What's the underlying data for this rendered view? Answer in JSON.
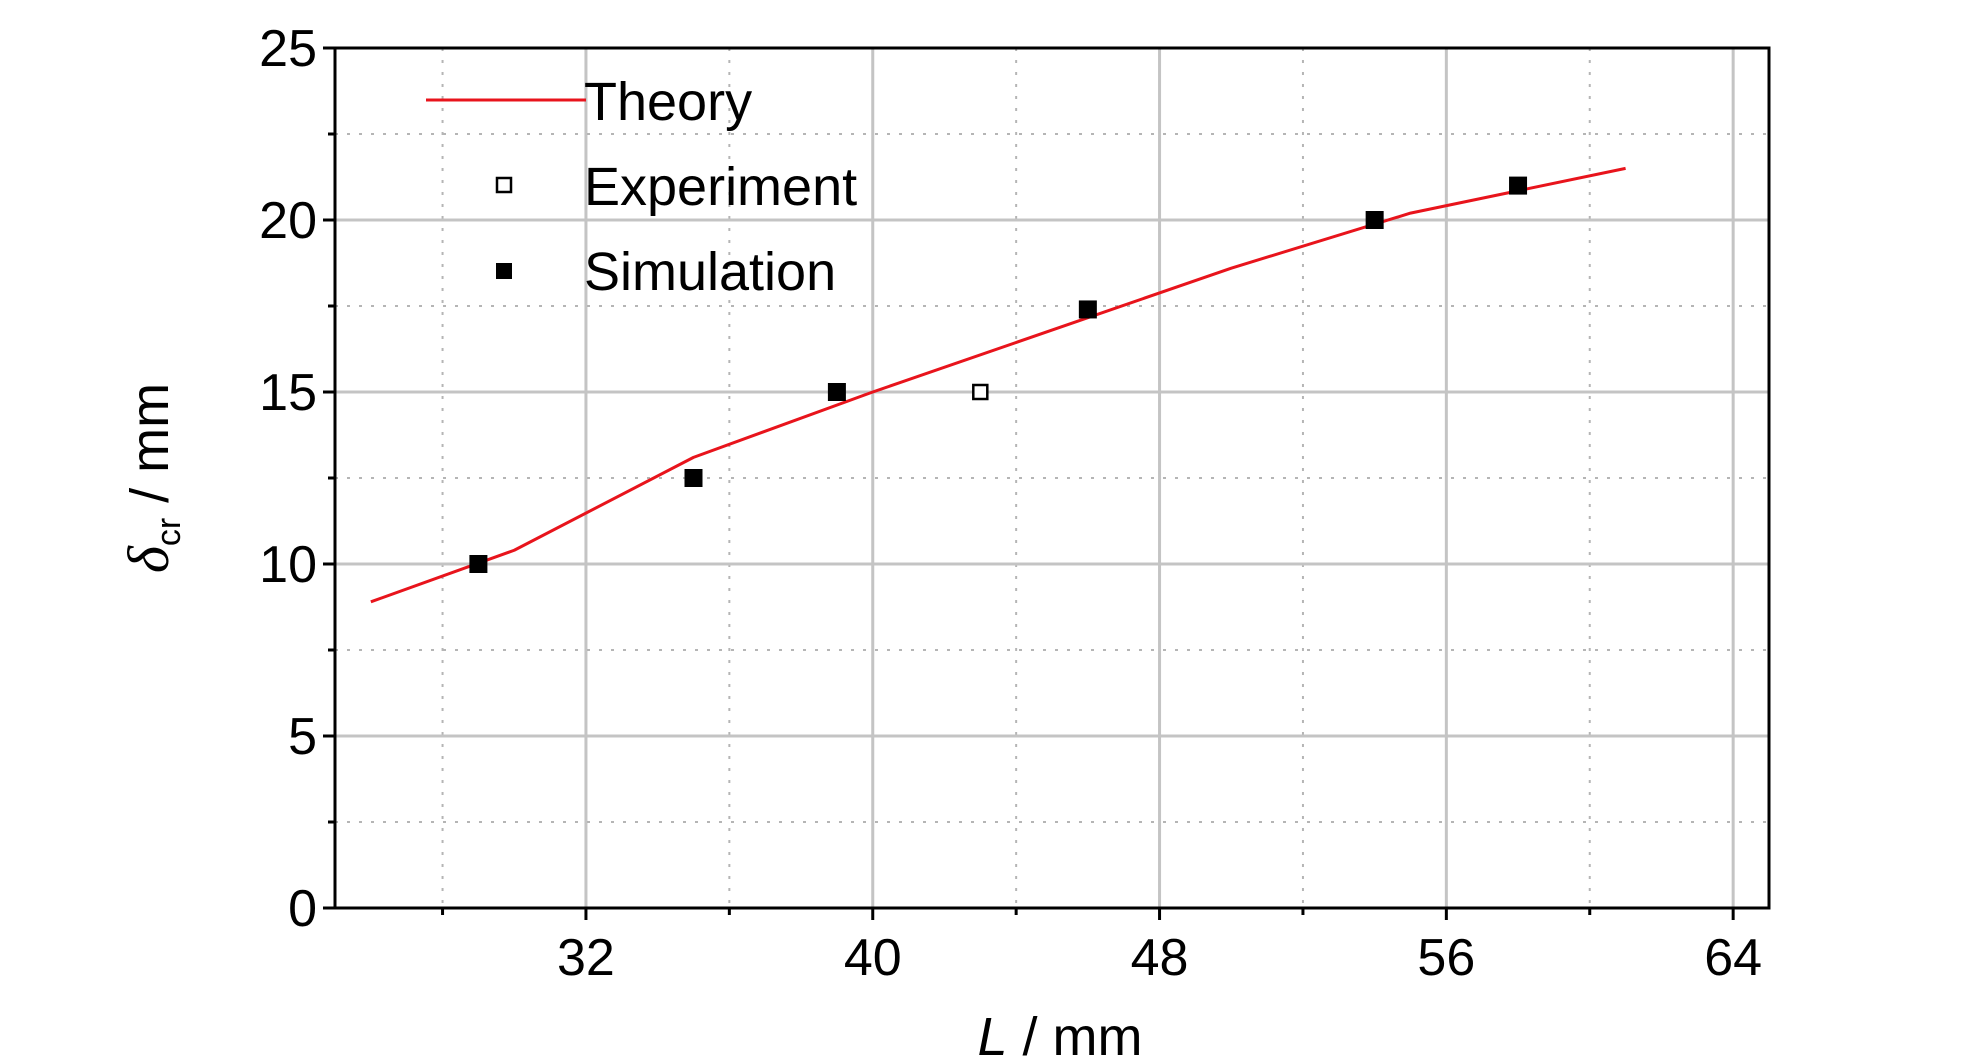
{
  "chart_data": {
    "type": "scatter",
    "xlabel_var": "L",
    "xlabel_unit": " / mm",
    "ylabel_var": "δ",
    "ylabel_sub": "cr",
    "ylabel_unit": " / mm",
    "xlim": [
      25,
      65
    ],
    "ylim": [
      0,
      25
    ],
    "xticks": [
      32,
      40,
      48,
      56,
      64
    ],
    "yticks": [
      0,
      5,
      10,
      15,
      20,
      25
    ],
    "grid": true,
    "legend_position": "top-left",
    "series": [
      {
        "name": "Theory",
        "kind": "line",
        "color": "#e8141c",
        "x": [
          26,
          30,
          35,
          40,
          45,
          50,
          55,
          61
        ],
        "y": [
          8.9,
          10.4,
          13.1,
          15.0,
          16.8,
          18.6,
          20.2,
          21.5
        ]
      },
      {
        "name": "Experiment",
        "kind": "open-square",
        "color": "#000000",
        "x": [
          43
        ],
        "y": [
          15
        ]
      },
      {
        "name": "Simulation",
        "kind": "filled-square",
        "color": "#000000",
        "x": [
          29,
          35,
          39,
          46,
          54,
          58
        ],
        "y": [
          10,
          12.5,
          15,
          17.4,
          20,
          21
        ]
      }
    ]
  }
}
